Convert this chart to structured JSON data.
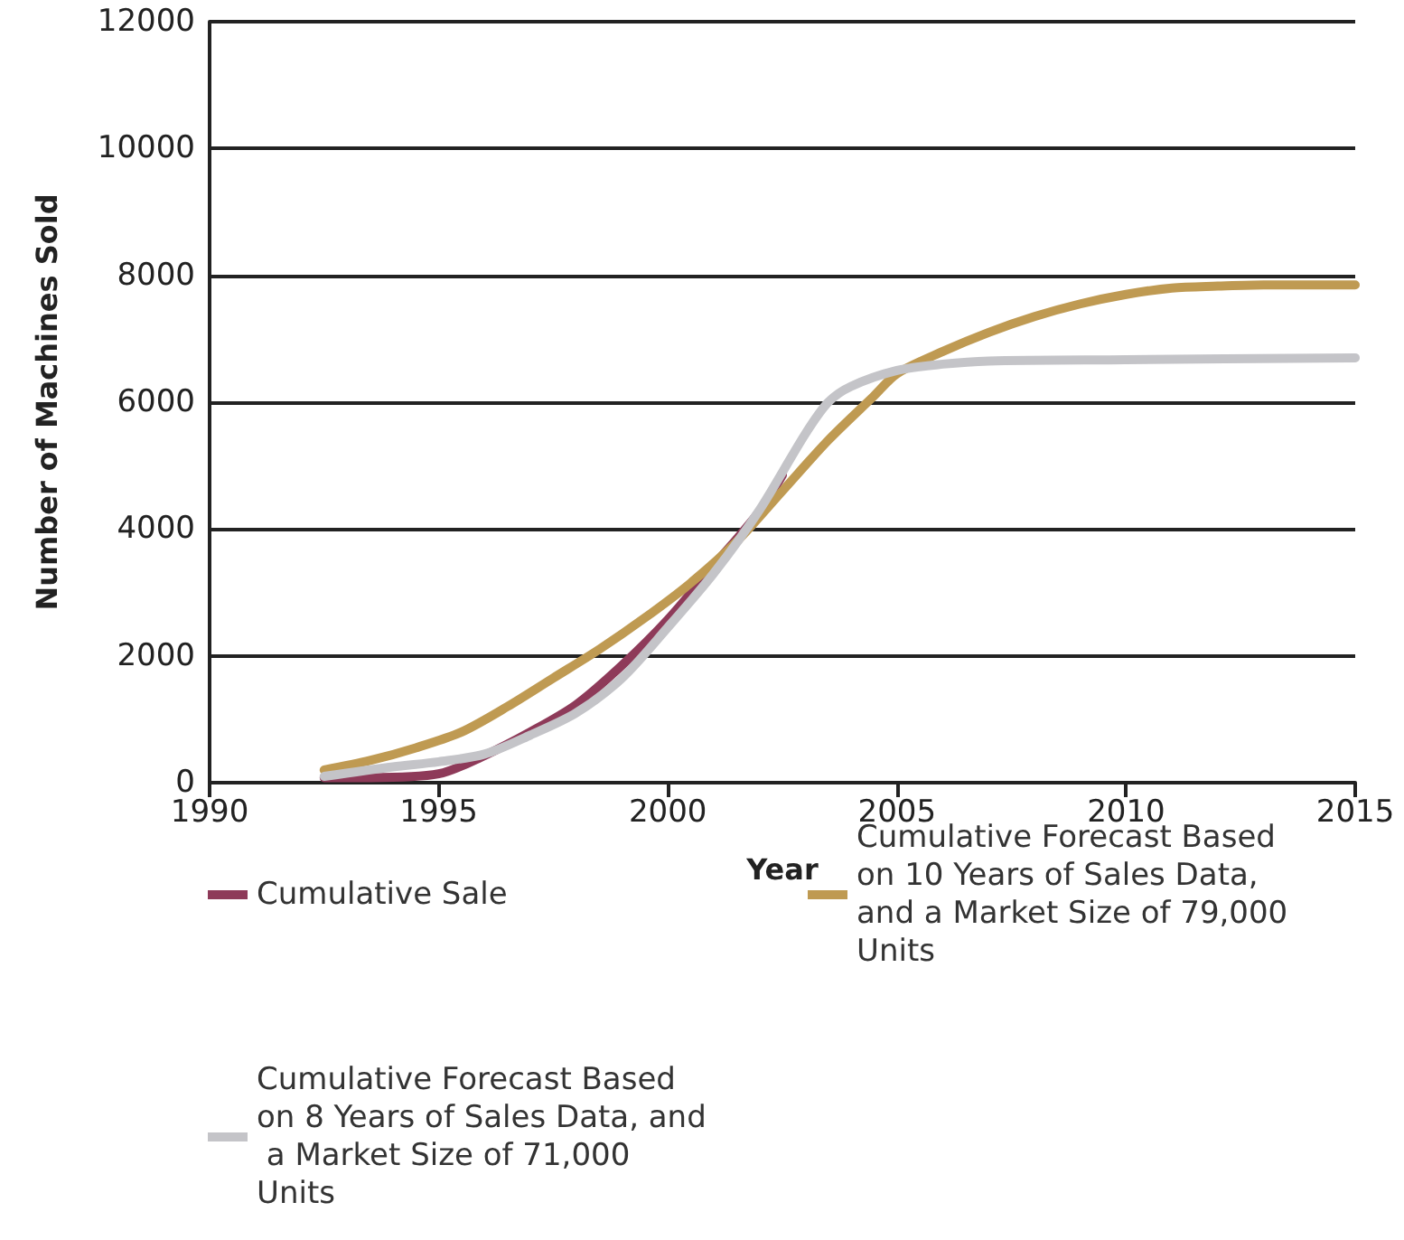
{
  "chart_data": {
    "type": "line",
    "xlabel": "Year",
    "ylabel": "Number of Machines Sold",
    "xlim": [
      1990,
      2015
    ],
    "xticks": [
      1990,
      1995,
      2000,
      2005,
      2010,
      2015
    ],
    "ylim": [
      0,
      12000
    ],
    "yticks": [
      0,
      2000,
      4000,
      6000,
      8000,
      10000,
      12000
    ],
    "grid": "y",
    "legend": "bottom",
    "marker": "none",
    "line_style": "solid",
    "series": [
      {
        "name": "Cumulative Sale",
        "color": "#8e3a59",
        "x": [
          1992.5,
          1993.5,
          1995,
          1996,
          1997,
          1998,
          1999,
          2000,
          2001,
          2002,
          2002.5
        ],
        "values": [
          80,
          80,
          140,
          430,
          800,
          1230,
          1850,
          2570,
          3420,
          4280,
          4850
        ]
      },
      {
        "name": "Cumulative Forecast Based on 10 Years of Sales Data, and a Market Size of 79,000 Units",
        "color": "#bf9a52",
        "x": [
          1992.5,
          1993.5,
          1994.5,
          1995.5,
          1996.5,
          1997.5,
          1998.5,
          1999.5,
          2000.5,
          2001.5,
          2002.5,
          2003.5,
          2004.5,
          2005,
          2006,
          2007,
          2008,
          2009,
          2010,
          2011,
          2012,
          2013,
          2015
        ],
        "values": [
          200,
          350,
          550,
          800,
          1200,
          1650,
          2100,
          2600,
          3150,
          3800,
          4600,
          5400,
          6100,
          6450,
          6800,
          7100,
          7350,
          7550,
          7700,
          7800,
          7830,
          7850,
          7850
        ]
      },
      {
        "name": "Cumulative Forecast Based on 8 Years of Sales Data, and a Market Size of 71,000 Units",
        "color": "#c4c4c8",
        "x": [
          1992.5,
          1994,
          1995,
          1996,
          1997,
          1998,
          1999,
          2000,
          2001,
          2002,
          2003,
          2003.5,
          2004,
          2005,
          2006,
          2007,
          2010,
          2015
        ],
        "values": [
          100,
          250,
          330,
          450,
          750,
          1100,
          1650,
          2450,
          3300,
          4300,
          5500,
          6000,
          6250,
          6500,
          6600,
          6650,
          6670,
          6700
        ]
      }
    ]
  }
}
